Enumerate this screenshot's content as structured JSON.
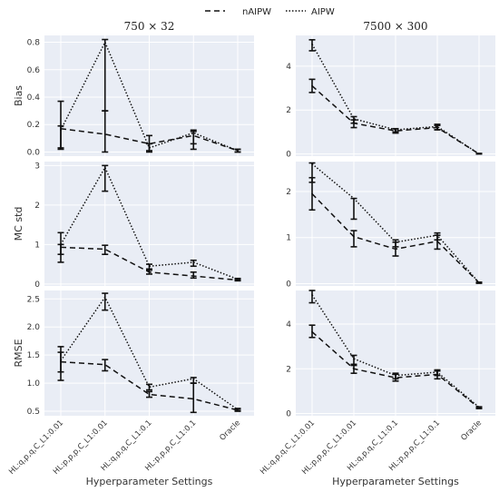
{
  "legend": {
    "items": [
      {
        "label": "nAIPW",
        "dash": "6,4"
      },
      {
        "label": "AIPW",
        "dash": "1.5,2"
      }
    ]
  },
  "columns": [
    "750 × 32",
    "7500 × 300"
  ],
  "row_labels": [
    "Bias",
    "MC std",
    "RMSE"
  ],
  "xlabel": "Hyperparameter Settings",
  "chart_data": {
    "type": "line",
    "categories": [
      "HL:q,p,q,C_L1:0.01",
      "HL:p,p,p,C_L1:0.01",
      "HL:q,p,q,C_L1:0.1",
      "HL:p,p,p,C_L1:0.1",
      "Oracle"
    ],
    "xlabel": "Hyperparameter Settings",
    "panels": [
      {
        "row": "Bias",
        "column": "750 × 32",
        "ylim": [
          -0.03,
          0.85
        ],
        "yticks": [
          "0.0",
          "0.2",
          "0.4",
          "0.6",
          "0.8"
        ],
        "ytick_values": [
          0,
          0.2,
          0.4,
          0.6,
          0.8
        ],
        "series": [
          {
            "name": "nAIPW",
            "values": [
              0.17,
              0.13,
              0.06,
              0.12,
              0.01
            ],
            "err_low": [
              0.02,
              0.0,
              0.0,
              0.06,
              0.0
            ],
            "err_high": [
              0.37,
              0.3,
              0.12,
              0.15,
              0.02
            ]
          },
          {
            "name": "AIPW",
            "values": [
              0.16,
              0.8,
              0.03,
              0.14,
              0.01
            ],
            "err_low": [
              0.03,
              0.3,
              0.01,
              0.02,
              0.0
            ],
            "err_high": [
              0.19,
              0.82,
              0.06,
              0.16,
              0.02
            ]
          }
        ]
      },
      {
        "row": "Bias",
        "column": "7500 × 300",
        "ylim": [
          -0.1,
          5.4
        ],
        "yticks": [
          "0",
          "2",
          "4"
        ],
        "ytick_values": [
          0,
          2,
          4
        ],
        "series": [
          {
            "name": "nAIPW",
            "values": [
              3.1,
              1.4,
              1.05,
              1.2,
              0.0
            ],
            "err_low": [
              2.8,
              1.2,
              0.95,
              1.1,
              0.0
            ],
            "err_high": [
              3.4,
              1.55,
              1.15,
              1.3,
              0.02
            ]
          },
          {
            "name": "AIPW",
            "values": [
              5.0,
              1.6,
              1.1,
              1.25,
              0.0
            ],
            "err_low": [
              4.7,
              1.4,
              1.0,
              1.1,
              0.0
            ],
            "err_high": [
              5.2,
              1.7,
              1.15,
              1.35,
              0.02
            ]
          }
        ]
      },
      {
        "row": "MC std",
        "column": "750 × 32",
        "ylim": [
          -0.05,
          3.1
        ],
        "yticks": [
          "0",
          "1",
          "2",
          "3"
        ],
        "ytick_values": [
          0,
          1,
          2,
          3
        ],
        "series": [
          {
            "name": "nAIPW",
            "values": [
              0.93,
              0.88,
              0.3,
              0.2,
              0.1
            ],
            "err_low": [
              0.55,
              0.75,
              0.25,
              0.15,
              0.08
            ],
            "err_high": [
              1.0,
              0.98,
              0.35,
              0.3,
              0.12
            ]
          },
          {
            "name": "AIPW",
            "values": [
              1.0,
              2.95,
              0.45,
              0.55,
              0.12
            ],
            "err_low": [
              0.75,
              2.35,
              0.38,
              0.45,
              0.1
            ],
            "err_high": [
              1.3,
              3.0,
              0.5,
              0.6,
              0.14
            ]
          }
        ]
      },
      {
        "row": "MC std",
        "column": "7500 × 300",
        "ylim": [
          -0.05,
          2.65
        ],
        "yticks": [
          "0",
          "1",
          "2"
        ],
        "ytick_values": [
          0,
          1,
          2
        ],
        "series": [
          {
            "name": "nAIPW",
            "values": [
              1.95,
              1.02,
              0.75,
              0.92,
              0.02
            ],
            "err_low": [
              1.6,
              0.8,
              0.6,
              0.75,
              0.01
            ],
            "err_high": [
              2.3,
              1.15,
              0.9,
              1.05,
              0.03
            ]
          },
          {
            "name": "AIPW",
            "values": [
              2.6,
              1.85,
              0.9,
              1.05,
              0.02
            ],
            "err_low": [
              2.2,
              1.4,
              0.8,
              0.95,
              0.01
            ],
            "err_high": [
              2.62,
              1.85,
              0.95,
              1.1,
              0.03
            ]
          }
        ]
      },
      {
        "row": "RMSE",
        "column": "750 × 32",
        "ylim": [
          0.42,
          2.65
        ],
        "yticks": [
          "0.5",
          "1.0",
          "1.5",
          "2.0",
          "2.5"
        ],
        "ytick_values": [
          0.5,
          1.0,
          1.5,
          2.0,
          2.5
        ],
        "series": [
          {
            "name": "nAIPW",
            "values": [
              1.38,
              1.33,
              0.8,
              0.72,
              0.52
            ],
            "err_low": [
              1.05,
              1.22,
              0.75,
              0.48,
              0.5
            ],
            "err_high": [
              1.55,
              1.42,
              0.85,
              1.0,
              0.54
            ]
          },
          {
            "name": "AIPW",
            "values": [
              1.4,
              2.53,
              0.93,
              1.08,
              0.53
            ],
            "err_low": [
              1.2,
              2.3,
              0.88,
              1.0,
              0.51
            ],
            "err_high": [
              1.65,
              2.6,
              0.98,
              1.1,
              0.55
            ]
          }
        ]
      },
      {
        "row": "RMSE",
        "column": "7500 × 300",
        "ylim": [
          -0.1,
          5.5
        ],
        "yticks": [
          "0",
          "2",
          "4"
        ],
        "ytick_values": [
          0,
          2,
          4
        ],
        "series": [
          {
            "name": "nAIPW",
            "values": [
              3.65,
              2.0,
              1.6,
              1.75,
              0.25
            ],
            "err_low": [
              3.4,
              1.8,
              1.45,
              1.55,
              0.22
            ],
            "err_high": [
              3.95,
              2.15,
              1.75,
              1.9,
              0.28
            ]
          },
          {
            "name": "AIPW",
            "values": [
              5.3,
              2.45,
              1.7,
              1.85,
              0.28
            ],
            "err_low": [
              4.95,
              2.2,
              1.55,
              1.7,
              0.24
            ],
            "err_high": [
              5.5,
              2.6,
              1.8,
              1.95,
              0.3
            ]
          }
        ]
      }
    ]
  }
}
